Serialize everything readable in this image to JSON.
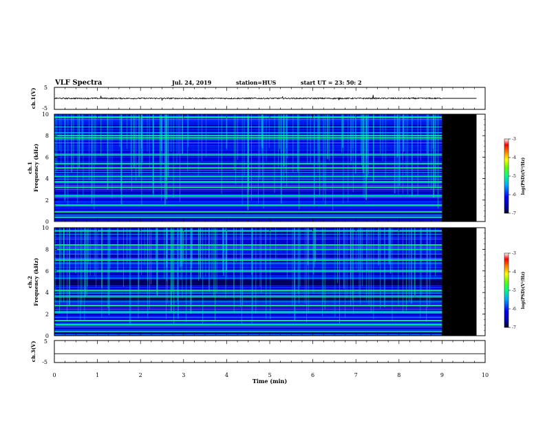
{
  "header": {
    "title": "VLF Spectra",
    "date": "Jul. 24, 2019",
    "station": "station=HUS",
    "start": "start UT =  23: 50: 2"
  },
  "colors": {
    "spectrogram_background": "#000000",
    "colormap": [
      "#00008b",
      "#0000ff",
      "#00aaff",
      "#00ffaa",
      "#00ff00",
      "#aaff00",
      "#ffff00",
      "#ff8800",
      "#ff0000",
      "#ffffff"
    ]
  },
  "chart_data": [
    {
      "type": "line",
      "name": "ch1-waveform",
      "ylabel": "ch.1(V)",
      "ylim": [
        -5,
        5
      ],
      "yticks": [
        "5",
        "-5"
      ],
      "xlim": [
        0,
        10
      ],
      "data_extent_min": 9.0,
      "baseline_value": 0.0,
      "noise_amplitude": 0.3,
      "spikes": [
        {
          "x": 1.08,
          "y": 1.2
        },
        {
          "x": 2.5,
          "y": -1.0
        },
        {
          "x": 5.3,
          "y": 0.9
        },
        {
          "x": 6.6,
          "y": -0.8
        },
        {
          "x": 7.4,
          "y": 1.6
        }
      ]
    },
    {
      "type": "heatmap",
      "name": "ch1-spectrogram",
      "ylabel": "ch.1\nFrequency (kHz)",
      "ylim": [
        0,
        10
      ],
      "yticks": [
        "0",
        "2",
        "4",
        "6",
        "8",
        "10"
      ],
      "xlim": [
        0,
        10
      ],
      "data_extent_min": 9.0,
      "bright_bands_khz": [
        0.4,
        0.9,
        1.5,
        2.4,
        3.2,
        3.7,
        4.2,
        5.0,
        5.4,
        6.2,
        7.8,
        8.0,
        9.7
      ],
      "colorbar": {
        "label": "log(PSD)(V²/Hz)",
        "ticks": [
          "-3",
          "-4",
          "-5",
          "-6",
          "-7"
        ],
        "range": [
          -7,
          -3
        ]
      }
    },
    {
      "type": "heatmap",
      "name": "ch2-spectrogram",
      "ylabel": "ch.2\nFrequency (kHz)",
      "ylim": [
        0,
        10
      ],
      "yticks": [
        "0",
        "2",
        "4",
        "6",
        "8",
        "10"
      ],
      "xlim": [
        0,
        10
      ],
      "data_extent_min": 9.0,
      "bright_bands_khz": [
        0.4,
        1.0,
        1.4,
        2.2,
        2.8,
        3.6,
        4.2,
        6.0,
        7.0,
        8.0,
        8.4,
        9.7
      ],
      "dark_bands_khz": [
        4.8,
        5.0,
        3.4
      ],
      "colorbar": {
        "label": "log(PSD)(V²/Hz)",
        "ticks": [
          "-3",
          "-4",
          "-5",
          "-6",
          "-7"
        ],
        "range": [
          -7,
          -3
        ]
      }
    },
    {
      "type": "line",
      "name": "ch3-waveform",
      "ylabel": "ch.3(V)",
      "ylim": [
        -5,
        5
      ],
      "yticks": [
        "5",
        "-5"
      ],
      "xlim": [
        0,
        10
      ],
      "baseline_value": -1.0,
      "noise_amplitude": 0.0
    }
  ],
  "xaxis": {
    "label": "Time  (min)",
    "ticks": [
      "0",
      "1",
      "2",
      "3",
      "4",
      "5",
      "6",
      "7",
      "8",
      "9",
      "10"
    ],
    "range": [
      0,
      10
    ]
  }
}
